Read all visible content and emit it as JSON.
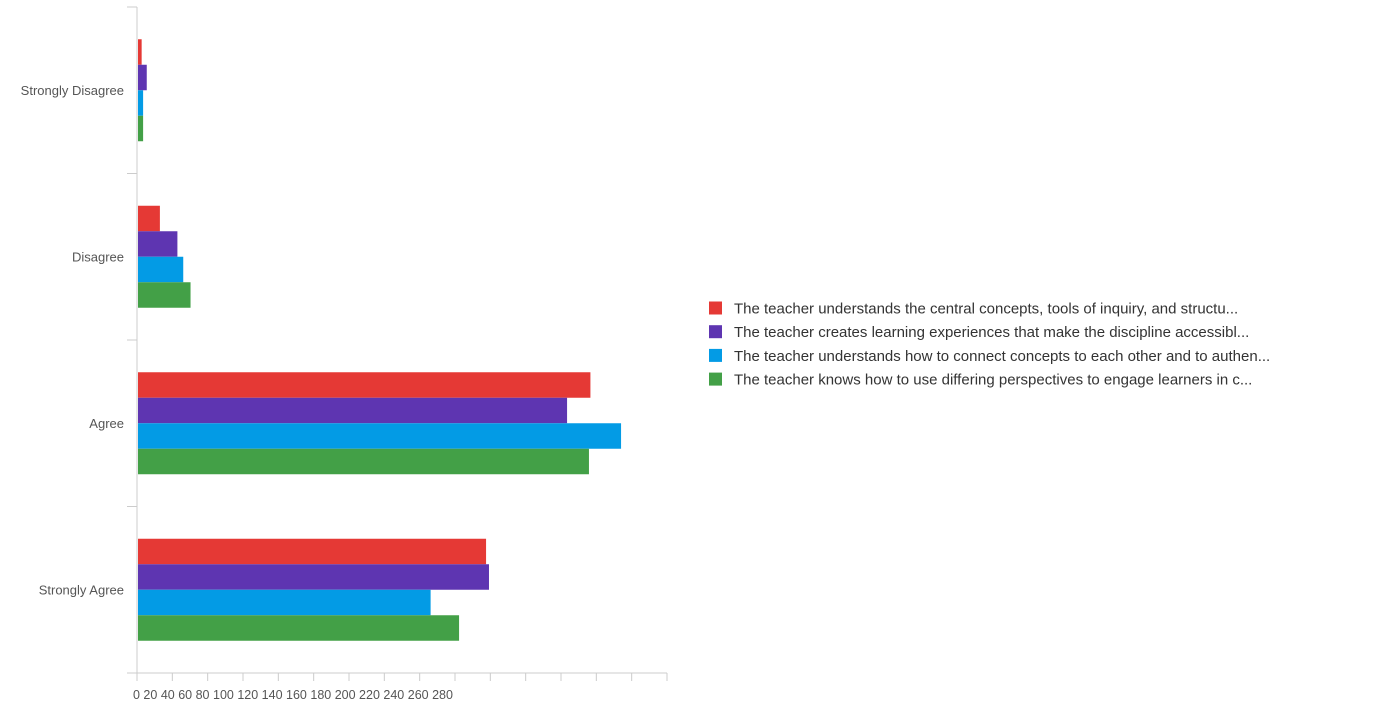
{
  "chart_data": {
    "type": "bar",
    "orientation": "horizontal",
    "categories": [
      "Strongly Disagree",
      "Disagree",
      "Agree",
      "Strongly Agree"
    ],
    "series": [
      {
        "name": "The teacher understands the central concepts, tools of inquiry, and structu...",
        "color": "#e53935",
        "values": [
          5,
          30,
          620,
          477
        ]
      },
      {
        "name": "The teacher creates learning experiences that make the discipline accessibl...",
        "color": "#5e35b1",
        "values": [
          12,
          54,
          588,
          481
        ]
      },
      {
        "name": "The teacher understands how to connect concepts to each other and to authen...",
        "color": "#039be5",
        "values": [
          7,
          62,
          662,
          401
        ]
      },
      {
        "name": "The teacher knows how to use differing perspectives to engage learners in c...",
        "color": "#43a047",
        "values": [
          7,
          72,
          618,
          440
        ]
      }
    ],
    "xtick_labels": [
      "0",
      "20",
      "40",
      "60",
      "80",
      "100",
      "120",
      "140",
      "160",
      "180",
      "200",
      "220",
      "240",
      "260",
      "280"
    ],
    "xlim": [
      0,
      720
    ],
    "legend_position": "right",
    "grid": false,
    "title": "",
    "xlabel": "",
    "ylabel": ""
  }
}
